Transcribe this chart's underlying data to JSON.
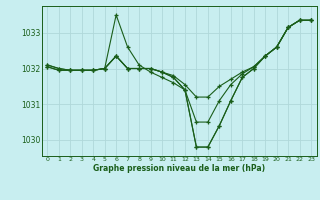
{
  "title": "Graphe pression niveau de la mer (hPa)",
  "bg_color": "#c8eef0",
  "grid_color": "#b0d8da",
  "line_color": "#1a5e1a",
  "x_ticks": [
    0,
    1,
    2,
    3,
    4,
    5,
    6,
    7,
    8,
    9,
    10,
    11,
    12,
    13,
    14,
    15,
    16,
    17,
    18,
    19,
    20,
    21,
    22,
    23
  ],
  "ylim": [
    1029.55,
    1033.75
  ],
  "y_ticks": [
    1030,
    1031,
    1032,
    1033
  ],
  "series": {
    "line1": [
      1032.1,
      1032.0,
      1031.95,
      1031.95,
      1031.95,
      1032.0,
      1033.5,
      1032.6,
      1032.1,
      1031.9,
      1031.75,
      1031.6,
      1031.4,
      1030.5,
      1030.5,
      1031.1,
      1031.55,
      1031.85,
      1032.05,
      1032.35,
      1032.6,
      1033.15,
      1033.35,
      1033.35
    ],
    "line2": [
      1032.05,
      1031.95,
      1031.95,
      1031.95,
      1031.95,
      1032.0,
      1032.35,
      1032.0,
      1032.0,
      1032.0,
      1031.9,
      1031.8,
      1031.55,
      1031.2,
      1031.2,
      1031.5,
      1031.7,
      1031.9,
      1032.05,
      1032.35,
      1032.6,
      1033.15,
      1033.35,
      1033.35
    ],
    "line3": [
      1032.05,
      1031.95,
      1031.95,
      1031.95,
      1031.95,
      1032.0,
      1032.35,
      1032.0,
      1032.0,
      1032.0,
      1031.9,
      1031.75,
      1031.4,
      1029.8,
      1029.8,
      1030.4,
      1031.1,
      1031.75,
      1032.0,
      1032.35,
      1032.6,
      1033.15,
      1033.35,
      1033.35
    ],
    "line4": [
      1032.1,
      1032.0,
      1031.95,
      1031.95,
      1031.95,
      1032.0,
      1032.35,
      1032.0,
      1032.0,
      1032.0,
      1031.9,
      1031.75,
      1031.4,
      1029.8,
      1029.8,
      1030.4,
      1031.1,
      1031.75,
      1032.0,
      1032.35,
      1032.6,
      1033.15,
      1033.35,
      1033.35
    ]
  }
}
